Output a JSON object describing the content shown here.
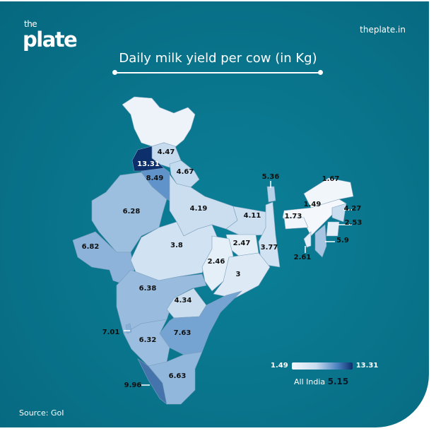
{
  "brand": {
    "logo_small": "the",
    "logo_main": "plate",
    "site": "theplate.in"
  },
  "title": "Daily milk yield per cow (in Kg)",
  "legend": {
    "min": "1.49",
    "max": "13.31",
    "min_value": 1.49,
    "max_value": 13.31,
    "low_color": "#f4f8fc",
    "high_color": "#0d2f6c"
  },
  "all_india": {
    "label": "All India",
    "value": "5.15"
  },
  "source": "Source: GoI",
  "background_color": "#0a7890",
  "map_values": [
    "4.47",
    "13.31",
    "4.67",
    "8.49",
    "6.28",
    "6.82",
    "4.19",
    "4.11",
    "3.8",
    "2.47",
    "3.77",
    "2.46",
    "3",
    "6.38",
    "4.34",
    "7.63",
    "6.32",
    "7.01",
    "9.96",
    "6.63",
    "5.36",
    "1.67",
    "1.49",
    "1.73",
    "4.27",
    "2.53",
    "5.9",
    "2.61"
  ]
}
